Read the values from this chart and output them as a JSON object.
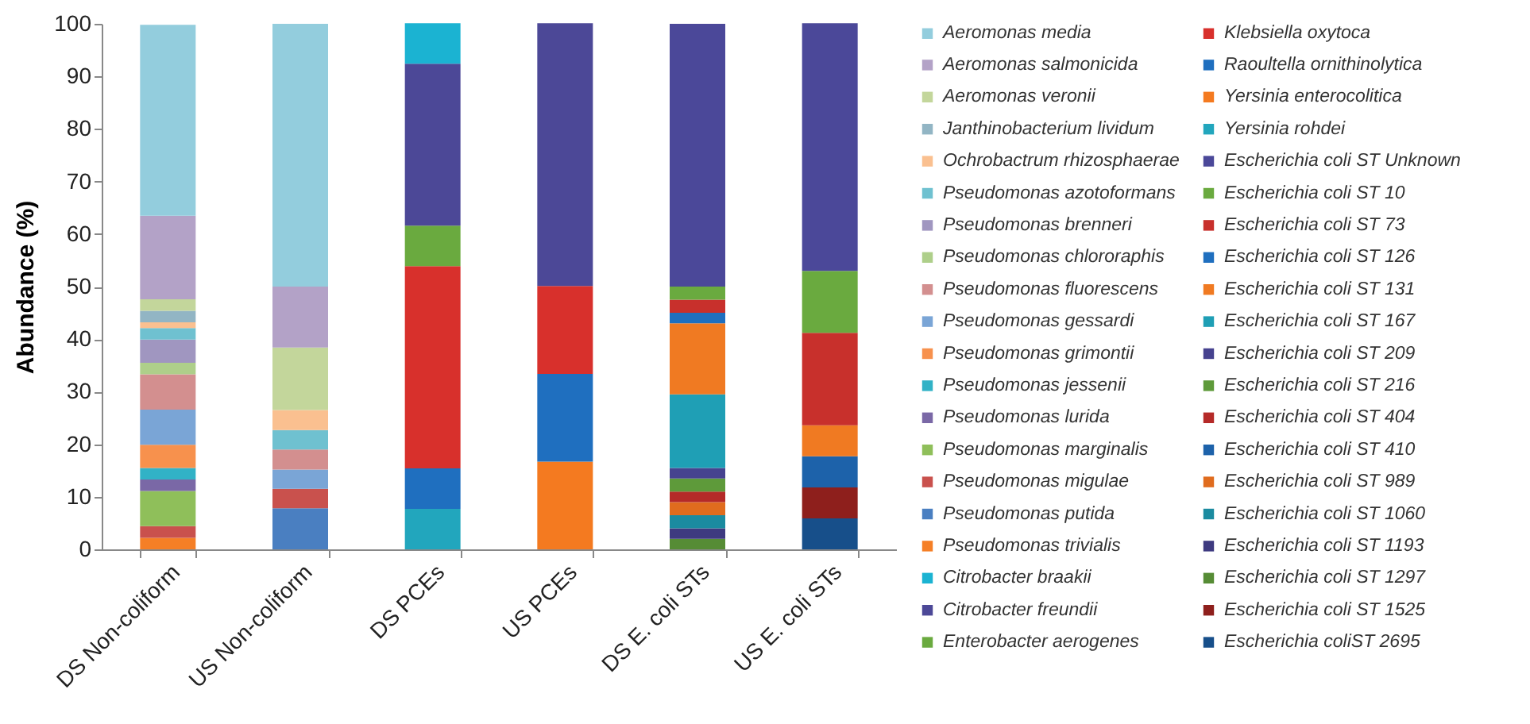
{
  "chart_data": {
    "type": "bar",
    "stacked": true,
    "ylabel": "Abundance (%)",
    "categories": [
      "DS Non-coliform",
      "US Non-coliform",
      "DS PCEs",
      "US PCEs",
      "DS E. coli STs",
      "US E. coli STs"
    ],
    "ylim": [
      0,
      100
    ],
    "yticks": [
      0,
      10,
      20,
      30,
      40,
      50,
      60,
      70,
      80,
      90,
      100
    ],
    "grid": false,
    "legend": "right",
    "series": [
      {
        "name": "Escherichia coliST 2695",
        "color": "#174f8a",
        "values": [
          0,
          0,
          0,
          0,
          0,
          5.9
        ]
      },
      {
        "name": "Escherichia coli ST 1525",
        "color": "#8e1f1c",
        "values": [
          0,
          0,
          0,
          0,
          0,
          5.9
        ]
      },
      {
        "name": "Escherichia coli ST 1297",
        "color": "#568c35",
        "values": [
          0,
          0,
          0,
          0,
          2,
          0
        ]
      },
      {
        "name": "Escherichia coli ST 1193",
        "color": "#3e3a80",
        "values": [
          0,
          0,
          0,
          0,
          2,
          0
        ]
      },
      {
        "name": "Escherichia coli ST 1060",
        "color": "#1b8ba0",
        "values": [
          0,
          0,
          0,
          0,
          2.5,
          0
        ]
      },
      {
        "name": "Escherichia coli ST 989",
        "color": "#e06c1e",
        "values": [
          0,
          0,
          0,
          0,
          2.5,
          0
        ]
      },
      {
        "name": "Escherichia coli ST 410",
        "color": "#1d62aa",
        "values": [
          0,
          0,
          0,
          0,
          0,
          5.9
        ]
      },
      {
        "name": "Escherichia coli ST 404",
        "color": "#b52a28",
        "values": [
          0,
          0,
          0,
          0,
          2,
          0
        ]
      },
      {
        "name": "Escherichia coli ST 216",
        "color": "#5e9a3a",
        "values": [
          0,
          0,
          0,
          0,
          2.5,
          0
        ]
      },
      {
        "name": "Escherichia coli ST 209",
        "color": "#46428f",
        "values": [
          0,
          0,
          0,
          0,
          2,
          0
        ]
      },
      {
        "name": "Escherichia coli ST 167",
        "color": "#1f9fb5",
        "values": [
          0,
          0,
          0,
          0,
          14,
          0
        ]
      },
      {
        "name": "Escherichia coli ST 131",
        "color": "#f07a22",
        "values": [
          0,
          0,
          0,
          0,
          13.5,
          5.9
        ]
      },
      {
        "name": "Escherichia coli ST 126",
        "color": "#1f6fbf",
        "values": [
          0,
          0,
          0,
          0,
          2,
          0
        ]
      },
      {
        "name": "Escherichia coli ST 73",
        "color": "#c8302c",
        "values": [
          0,
          0,
          0,
          0,
          2.5,
          17.6
        ]
      },
      {
        "name": "Escherichia coli ST 10",
        "color": "#6aaa3f",
        "values": [
          0,
          0,
          0,
          0,
          2.5,
          11.8
        ]
      },
      {
        "name": "Escherichia coli ST Unknown",
        "color": "#4b4899",
        "values": [
          0,
          0,
          0,
          0,
          50,
          47.1
        ]
      },
      {
        "name": "Yersinia rohdei",
        "color": "#22a6bd",
        "values": [
          0,
          0,
          7.7,
          0,
          0,
          0
        ]
      },
      {
        "name": "Yersinia enterocolitica",
        "color": "#f47a20",
        "values": [
          0,
          0,
          0,
          16.7,
          0,
          0
        ]
      },
      {
        "name": "Raoultella ornithinolytica",
        "color": "#1f6fbf",
        "values": [
          0,
          0,
          7.7,
          16.7,
          0,
          0
        ]
      },
      {
        "name": "Klebsiella oxytoca",
        "color": "#d8302c",
        "values": [
          0,
          0,
          38.5,
          16.7,
          0,
          0
        ]
      },
      {
        "name": "Enterobacter aerogenes",
        "color": "#6aaa3f",
        "values": [
          0,
          0,
          7.7,
          0,
          0,
          0
        ]
      },
      {
        "name": "Citrobacter freundii",
        "color": "#4c4897",
        "values": [
          0,
          0,
          30.8,
          50,
          0,
          0
        ]
      },
      {
        "name": "Citrobacter braakii",
        "color": "#1bb3d2",
        "values": [
          0,
          0,
          7.7,
          0,
          0,
          0
        ]
      },
      {
        "name": "Pseudomonas trivialis",
        "color": "#f57f26",
        "values": [
          2.2,
          0,
          0,
          0,
          0,
          0
        ]
      },
      {
        "name": "Pseudomonas putida",
        "color": "#4a7fc1",
        "values": [
          0,
          7.8,
          0,
          0,
          0,
          0
        ]
      },
      {
        "name": "Pseudomonas migulae",
        "color": "#c9514d",
        "values": [
          2.2,
          3.7,
          0,
          0,
          0,
          0
        ]
      },
      {
        "name": "Pseudomonas marginalis",
        "color": "#8fbf5a",
        "values": [
          6.7,
          0,
          0,
          0,
          0,
          0
        ]
      },
      {
        "name": "Pseudomonas lurida",
        "color": "#7a68a6",
        "values": [
          2.2,
          0,
          0,
          0,
          0,
          0
        ]
      },
      {
        "name": "Pseudomonas jessenii",
        "color": "#31b2c6",
        "values": [
          2.2,
          0,
          0,
          0,
          0,
          0
        ]
      },
      {
        "name": "Pseudomonas grimontii",
        "color": "#f7914d",
        "values": [
          4.4,
          0,
          0,
          0,
          0,
          0
        ]
      },
      {
        "name": "Pseudomonas gessardi",
        "color": "#7aa5d6",
        "values": [
          6.7,
          3.7,
          0,
          0,
          0,
          0
        ]
      },
      {
        "name": "Pseudomonas fluorescens",
        "color": "#d38f8f",
        "values": [
          6.7,
          3.8,
          0,
          0,
          0,
          0
        ]
      },
      {
        "name": "Pseudomonas chlororaphis",
        "color": "#aecf8a",
        "values": [
          2.2,
          0,
          0,
          0,
          0,
          0
        ]
      },
      {
        "name": "Pseudomonas brenneri",
        "color": "#a096c0",
        "values": [
          4.4,
          0,
          0,
          0,
          0,
          0
        ]
      },
      {
        "name": "Pseudomonas azotoformans",
        "color": "#6fc1d0",
        "values": [
          2.2,
          3.7,
          0,
          0,
          0,
          0
        ]
      },
      {
        "name": "Ochrobactrum rhizosphaerae",
        "color": "#fac090",
        "values": [
          1.1,
          3.8,
          0,
          0,
          0,
          0
        ]
      },
      {
        "name": "Janthinobacterium lividum",
        "color": "#92b5c4",
        "values": [
          2.2,
          0,
          0,
          0,
          0,
          0
        ]
      },
      {
        "name": "Aeromonas veronii",
        "color": "#c3d69b",
        "values": [
          2.2,
          11.9,
          0,
          0,
          0,
          0
        ]
      },
      {
        "name": "Aeromonas salmonicida",
        "color": "#b3a2c7",
        "values": [
          15.9,
          11.6,
          0,
          0,
          0,
          0
        ]
      },
      {
        "name": "Aeromonas media",
        "color": "#93cddd",
        "values": [
          36.3,
          50,
          0,
          0,
          0,
          0
        ]
      }
    ]
  }
}
